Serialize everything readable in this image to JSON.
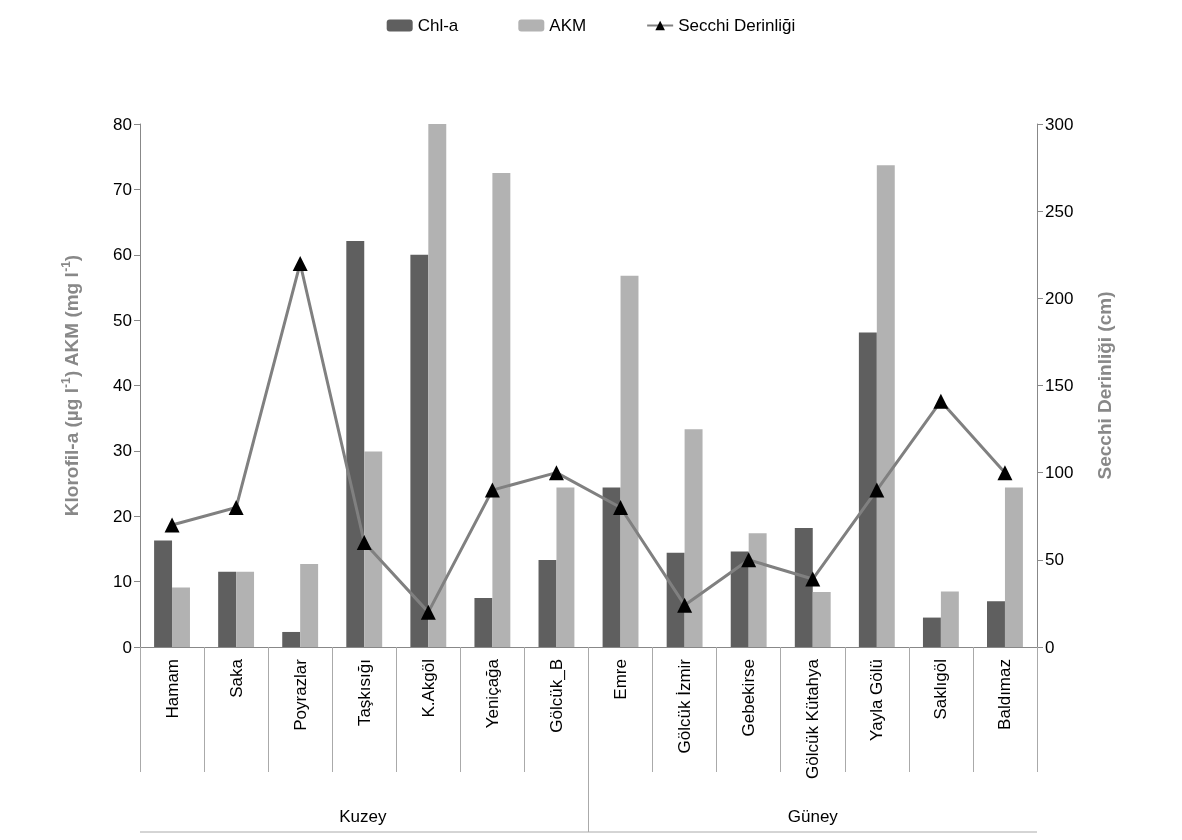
{
  "chart_data": {
    "type": "bar",
    "categories": [
      "Hamam",
      "Saka",
      "Poyrazlar",
      "Taşkısığı",
      "K.Akgöl",
      "Yeniçağa",
      "Gölcük_B",
      "Emre",
      "Gölcük İzmir",
      "Gebekirse",
      "Gölcük Kütahya",
      "Yayla Gölü",
      "Saklıgöl",
      "Baldımaz"
    ],
    "series": [
      {
        "name": "Chl-a",
        "color": "#5f5f5f",
        "values": [
          16.3,
          11.5,
          2.3,
          62.1,
          60.0,
          7.5,
          13.3,
          24.4,
          14.4,
          14.6,
          18.2,
          48.1,
          4.5,
          7.0
        ]
      },
      {
        "name": "AKM",
        "color": "#b2b2b2",
        "values": [
          9.1,
          11.5,
          12.7,
          29.9,
          80.0,
          72.5,
          24.4,
          56.8,
          33.3,
          17.4,
          8.4,
          73.7,
          8.5,
          24.4
        ]
      },
      {
        "name": "Secchi Derinliği",
        "type": "line",
        "axis": "y2",
        "color": "#808080",
        "marker": "triangle",
        "values": [
          70,
          80,
          220,
          60,
          20,
          90,
          100,
          80,
          24,
          50,
          39,
          90,
          141,
          100
        ]
      }
    ],
    "ylabel": "Klorofil-a (µg l$^{-1}$) AKM (mg l$^{-1}$)",
    "y2label": "Secchi Derinliği (cm)",
    "ylim": [
      0,
      80
    ],
    "yticks": [
      0,
      10,
      20,
      30,
      40,
      50,
      60,
      70,
      80
    ],
    "y2lim": [
      0,
      300
    ],
    "y2ticks": [
      0,
      50,
      100,
      150,
      200,
      250,
      300
    ],
    "annotations": [
      "Kuzey",
      "Güney"
    ],
    "grid": false,
    "legend": "top"
  }
}
